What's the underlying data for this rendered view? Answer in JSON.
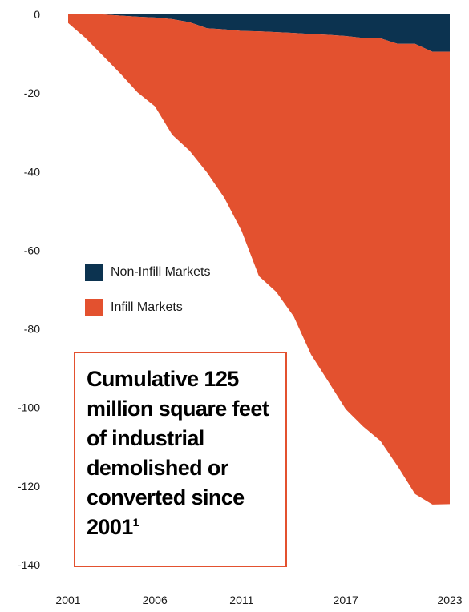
{
  "chart_data": {
    "type": "area",
    "stacked": true,
    "x_tick_labels": [
      "2001",
      "2006",
      "2011",
      "2017",
      "2023"
    ],
    "y_tick_labels": [
      "0",
      "-20",
      "-40",
      "-60",
      "-80",
      "-100",
      "-120",
      "-140"
    ],
    "x_range": [
      "2001",
      "2023"
    ],
    "ylim": [
      -140,
      0
    ],
    "grid": false,
    "legend_position": "left-middle",
    "x": [
      "2001",
      "2002",
      "2003",
      "2004",
      "2005",
      "2006",
      "2007",
      "2008",
      "2009",
      "2010",
      "2011",
      "2012",
      "2013",
      "2014",
      "2015",
      "2016",
      "2017",
      "2018",
      "2019",
      "2020",
      "2021",
      "2022",
      "2023"
    ],
    "series": [
      {
        "name": "Non-Infill Markets",
        "color": "#0c3350",
        "values": [
          0,
          0,
          0,
          -0.3,
          -0.6,
          -0.8,
          -1.2,
          -2.0,
          -3.5,
          -3.8,
          -4.2,
          -4.3,
          -4.5,
          -4.7,
          -5.0,
          -5.2,
          -5.5,
          -6.0,
          -6.1,
          -7.5,
          -7.5,
          -9.5,
          -9.5
        ]
      },
      {
        "name": "Infill Markets",
        "color": "#e3512f",
        "values": [
          -2.2,
          -6.0,
          -10.5,
          -14.7,
          -19.2,
          -22.6,
          -29.4,
          -32.7,
          -36.7,
          -42.8,
          -50.9,
          -62.3,
          -66.1,
          -72.1,
          -81.5,
          -88.2,
          -94.9,
          -98.8,
          -102.4,
          -107.5,
          -114.5,
          -115.2,
          -115.1
        ]
      }
    ]
  },
  "callout": {
    "text": "Cumulative 125 million square feet of industrial demolished or converted since 2001",
    "footnote": "1",
    "border_color": "#e3512f"
  }
}
